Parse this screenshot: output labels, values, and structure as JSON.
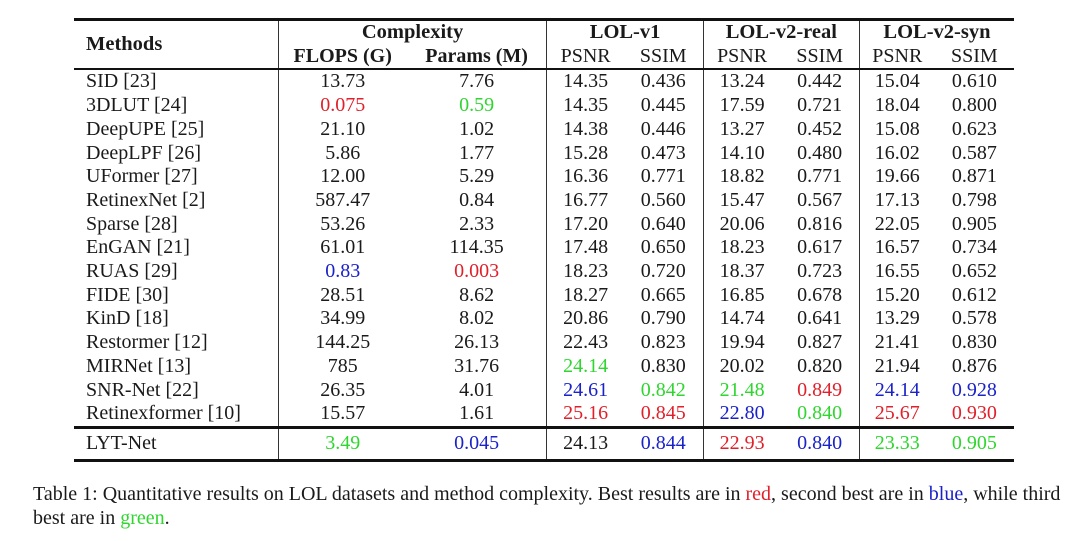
{
  "colors": {
    "red": "#e0202a",
    "blue": "#1a22c8",
    "green": "#2fd62f"
  },
  "header": {
    "methods": "Methods",
    "groups": [
      "Complexity",
      "LOL-v1",
      "LOL-v2-real",
      "LOL-v2-syn"
    ],
    "subcols": [
      "FLOPS (G)",
      "Params (M)",
      "PSNR",
      "SSIM",
      "PSNR",
      "SSIM",
      "PSNR",
      "SSIM"
    ]
  },
  "rows": [
    {
      "method": "SID [23]",
      "values": [
        "13.73",
        "7.76",
        "14.35",
        "0.436",
        "13.24",
        "0.442",
        "15.04",
        "0.610"
      ],
      "colors": [
        "",
        "",
        "",
        "",
        "",
        "",
        "",
        ""
      ]
    },
    {
      "method": "3DLUT [24]",
      "values": [
        "0.075",
        "0.59",
        "14.35",
        "0.445",
        "17.59",
        "0.721",
        "18.04",
        "0.800"
      ],
      "colors": [
        "red",
        "green",
        "",
        "",
        "",
        "",
        "",
        ""
      ]
    },
    {
      "method": "DeepUPE [25]",
      "values": [
        "21.10",
        "1.02",
        "14.38",
        "0.446",
        "13.27",
        "0.452",
        "15.08",
        "0.623"
      ],
      "colors": [
        "",
        "",
        "",
        "",
        "",
        "",
        "",
        ""
      ]
    },
    {
      "method": "DeepLPF [26]",
      "values": [
        "5.86",
        "1.77",
        "15.28",
        "0.473",
        "14.10",
        "0.480",
        "16.02",
        "0.587"
      ],
      "colors": [
        "",
        "",
        "",
        "",
        "",
        "",
        "",
        ""
      ]
    },
    {
      "method": "UFormer [27]",
      "values": [
        "12.00",
        "5.29",
        "16.36",
        "0.771",
        "18.82",
        "0.771",
        "19.66",
        "0.871"
      ],
      "colors": [
        "",
        "",
        "",
        "",
        "",
        "",
        "",
        ""
      ]
    },
    {
      "method": "RetinexNet [2]",
      "values": [
        "587.47",
        "0.84",
        "16.77",
        "0.560",
        "15.47",
        "0.567",
        "17.13",
        "0.798"
      ],
      "colors": [
        "",
        "",
        "",
        "",
        "",
        "",
        "",
        ""
      ]
    },
    {
      "method": "Sparse [28]",
      "values": [
        "53.26",
        "2.33",
        "17.20",
        "0.640",
        "20.06",
        "0.816",
        "22.05",
        "0.905"
      ],
      "colors": [
        "",
        "",
        "",
        "",
        "",
        "",
        "",
        ""
      ]
    },
    {
      "method": "EnGAN [21]",
      "values": [
        "61.01",
        "114.35",
        "17.48",
        "0.650",
        "18.23",
        "0.617",
        "16.57",
        "0.734"
      ],
      "colors": [
        "",
        "",
        "",
        "",
        "",
        "",
        "",
        ""
      ]
    },
    {
      "method": "RUAS [29]",
      "values": [
        "0.83",
        "0.003",
        "18.23",
        "0.720",
        "18.37",
        "0.723",
        "16.55",
        "0.652"
      ],
      "colors": [
        "blue",
        "red",
        "",
        "",
        "",
        "",
        "",
        ""
      ]
    },
    {
      "method": "FIDE [30]",
      "values": [
        "28.51",
        "8.62",
        "18.27",
        "0.665",
        "16.85",
        "0.678",
        "15.20",
        "0.612"
      ],
      "colors": [
        "",
        "",
        "",
        "",
        "",
        "",
        "",
        ""
      ]
    },
    {
      "method": "KinD [18]",
      "values": [
        "34.99",
        "8.02",
        "20.86",
        "0.790",
        "14.74",
        "0.641",
        "13.29",
        "0.578"
      ],
      "colors": [
        "",
        "",
        "",
        "",
        "",
        "",
        "",
        ""
      ]
    },
    {
      "method": "Restormer [12]",
      "values": [
        "144.25",
        "26.13",
        "22.43",
        "0.823",
        "19.94",
        "0.827",
        "21.41",
        "0.830"
      ],
      "colors": [
        "",
        "",
        "",
        "",
        "",
        "",
        "",
        ""
      ]
    },
    {
      "method": "MIRNet [13]",
      "values": [
        "785",
        "31.76",
        "24.14",
        "0.830",
        "20.02",
        "0.820",
        "21.94",
        "0.876"
      ],
      "colors": [
        "",
        "",
        "green",
        "",
        "",
        "",
        "",
        ""
      ]
    },
    {
      "method": "SNR-Net [22]",
      "values": [
        "26.35",
        "4.01",
        "24.61",
        "0.842",
        "21.48",
        "0.849",
        "24.14",
        "0.928"
      ],
      "colors": [
        "",
        "",
        "blue",
        "green",
        "green",
        "red",
        "blue",
        "blue"
      ]
    },
    {
      "method": "Retinexformer [10]",
      "values": [
        "15.57",
        "1.61",
        "25.16",
        "0.845",
        "22.80",
        "0.840",
        "25.67",
        "0.930"
      ],
      "colors": [
        "",
        "",
        "red",
        "red",
        "blue",
        "green",
        "red",
        "red"
      ]
    }
  ],
  "ours": {
    "method": "LYT-Net",
    "values": [
      "3.49",
      "0.045",
      "24.13",
      "0.844",
      "22.93",
      "0.840",
      "23.33",
      "0.905"
    ],
    "colors": [
      "green",
      "blue",
      "",
      "blue",
      "red",
      "blue",
      "green",
      "green"
    ]
  },
  "caption": {
    "part1": "Table 1: Quantitative results on LOL datasets and method complexity. Best results are in ",
    "red_word": "red",
    "part2": ", second best are in ",
    "blue_word": "blue",
    "part3": ", while third best are in ",
    "green_word": "green",
    "part4": "."
  }
}
